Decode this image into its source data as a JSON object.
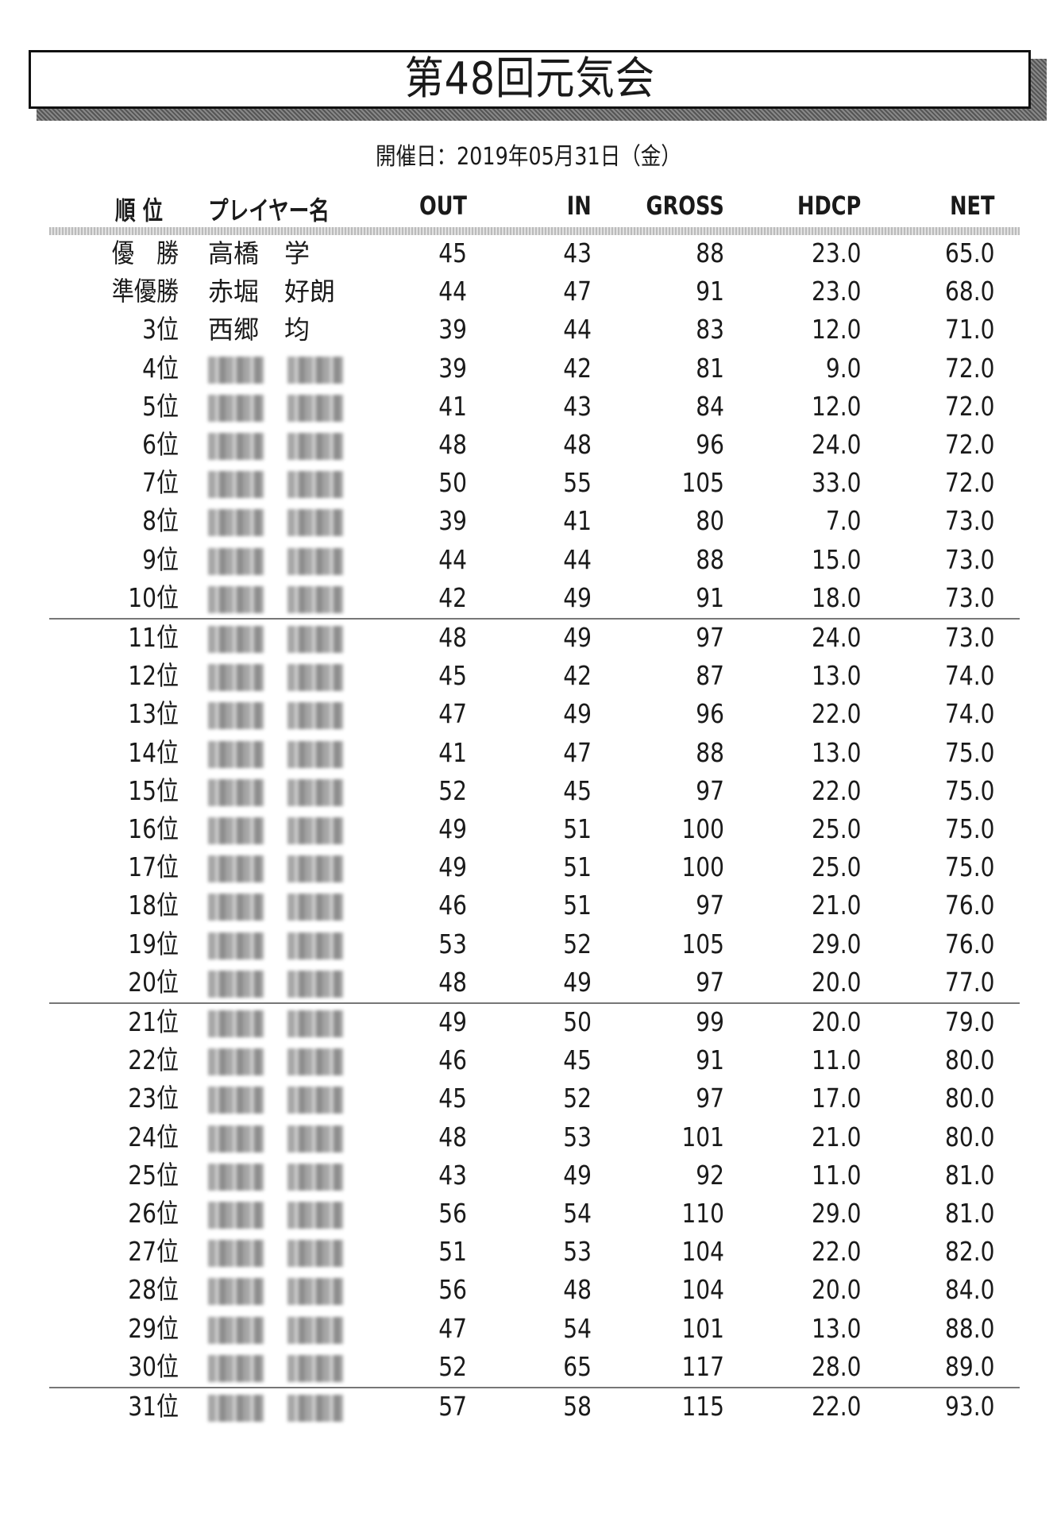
{
  "title": "第48回元気会",
  "date": "開催日：2019年05月31日（金）",
  "headers": {
    "rank": "順 位",
    "player": "プレイヤー名",
    "out": "OUT",
    "in": "IN",
    "gross": "GROSS",
    "hdcp": "HDCP",
    "net": "NET"
  },
  "rows": [
    {
      "rank": "優　勝",
      "name": "高橋　学",
      "out": "45",
      "in": "43",
      "gross": "88",
      "hdcp": "23.0",
      "net": "65.0"
    },
    {
      "rank": "準優勝",
      "name": "赤堀　好朗",
      "out": "44",
      "in": "47",
      "gross": "91",
      "hdcp": "23.0",
      "net": "68.0"
    },
    {
      "rank": "3位",
      "name": "西郷　均",
      "out": "39",
      "in": "44",
      "gross": "83",
      "hdcp": "12.0",
      "net": "71.0"
    },
    {
      "rank": "4位",
      "name": "",
      "out": "39",
      "in": "42",
      "gross": "81",
      "hdcp": "9.0",
      "net": "72.0"
    },
    {
      "rank": "5位",
      "name": "",
      "out": "41",
      "in": "43",
      "gross": "84",
      "hdcp": "12.0",
      "net": "72.0"
    },
    {
      "rank": "6位",
      "name": "",
      "out": "48",
      "in": "48",
      "gross": "96",
      "hdcp": "24.0",
      "net": "72.0"
    },
    {
      "rank": "7位",
      "name": "",
      "out": "50",
      "in": "55",
      "gross": "105",
      "hdcp": "33.0",
      "net": "72.0"
    },
    {
      "rank": "8位",
      "name": "",
      "out": "39",
      "in": "41",
      "gross": "80",
      "hdcp": "7.0",
      "net": "73.0"
    },
    {
      "rank": "9位",
      "name": "",
      "out": "44",
      "in": "44",
      "gross": "88",
      "hdcp": "15.0",
      "net": "73.0"
    },
    {
      "rank": "10位",
      "name": "",
      "out": "42",
      "in": "49",
      "gross": "91",
      "hdcp": "18.0",
      "net": "73.0"
    },
    {
      "rank": "11位",
      "name": "",
      "out": "48",
      "in": "49",
      "gross": "97",
      "hdcp": "24.0",
      "net": "73.0"
    },
    {
      "rank": "12位",
      "name": "",
      "out": "45",
      "in": "42",
      "gross": "87",
      "hdcp": "13.0",
      "net": "74.0"
    },
    {
      "rank": "13位",
      "name": "",
      "out": "47",
      "in": "49",
      "gross": "96",
      "hdcp": "22.0",
      "net": "74.0"
    },
    {
      "rank": "14位",
      "name": "",
      "out": "41",
      "in": "47",
      "gross": "88",
      "hdcp": "13.0",
      "net": "75.0"
    },
    {
      "rank": "15位",
      "name": "",
      "out": "52",
      "in": "45",
      "gross": "97",
      "hdcp": "22.0",
      "net": "75.0"
    },
    {
      "rank": "16位",
      "name": "",
      "out": "49",
      "in": "51",
      "gross": "100",
      "hdcp": "25.0",
      "net": "75.0"
    },
    {
      "rank": "17位",
      "name": "",
      "out": "49",
      "in": "51",
      "gross": "100",
      "hdcp": "25.0",
      "net": "75.0"
    },
    {
      "rank": "18位",
      "name": "",
      "out": "46",
      "in": "51",
      "gross": "97",
      "hdcp": "21.0",
      "net": "76.0"
    },
    {
      "rank": "19位",
      "name": "",
      "out": "53",
      "in": "52",
      "gross": "105",
      "hdcp": "29.0",
      "net": "76.0"
    },
    {
      "rank": "20位",
      "name": "",
      "out": "48",
      "in": "49",
      "gross": "97",
      "hdcp": "20.0",
      "net": "77.0"
    },
    {
      "rank": "21位",
      "name": "",
      "out": "49",
      "in": "50",
      "gross": "99",
      "hdcp": "20.0",
      "net": "79.0"
    },
    {
      "rank": "22位",
      "name": "",
      "out": "46",
      "in": "45",
      "gross": "91",
      "hdcp": "11.0",
      "net": "80.0"
    },
    {
      "rank": "23位",
      "name": "",
      "out": "45",
      "in": "52",
      "gross": "97",
      "hdcp": "17.0",
      "net": "80.0"
    },
    {
      "rank": "24位",
      "name": "",
      "out": "48",
      "in": "53",
      "gross": "101",
      "hdcp": "21.0",
      "net": "80.0"
    },
    {
      "rank": "25位",
      "name": "",
      "out": "43",
      "in": "49",
      "gross": "92",
      "hdcp": "11.0",
      "net": "81.0"
    },
    {
      "rank": "26位",
      "name": "",
      "out": "56",
      "in": "54",
      "gross": "110",
      "hdcp": "29.0",
      "net": "81.0"
    },
    {
      "rank": "27位",
      "name": "",
      "out": "51",
      "in": "53",
      "gross": "104",
      "hdcp": "22.0",
      "net": "82.0"
    },
    {
      "rank": "28位",
      "name": "",
      "out": "56",
      "in": "48",
      "gross": "104",
      "hdcp": "20.0",
      "net": "84.0"
    },
    {
      "rank": "29位",
      "name": "",
      "out": "47",
      "in": "54",
      "gross": "101",
      "hdcp": "13.0",
      "net": "88.0"
    },
    {
      "rank": "30位",
      "name": "",
      "out": "52",
      "in": "65",
      "gross": "117",
      "hdcp": "28.0",
      "net": "89.0"
    },
    {
      "rank": "31位",
      "name": "",
      "out": "57",
      "in": "58",
      "gross": "115",
      "hdcp": "22.0",
      "net": "93.0"
    }
  ]
}
